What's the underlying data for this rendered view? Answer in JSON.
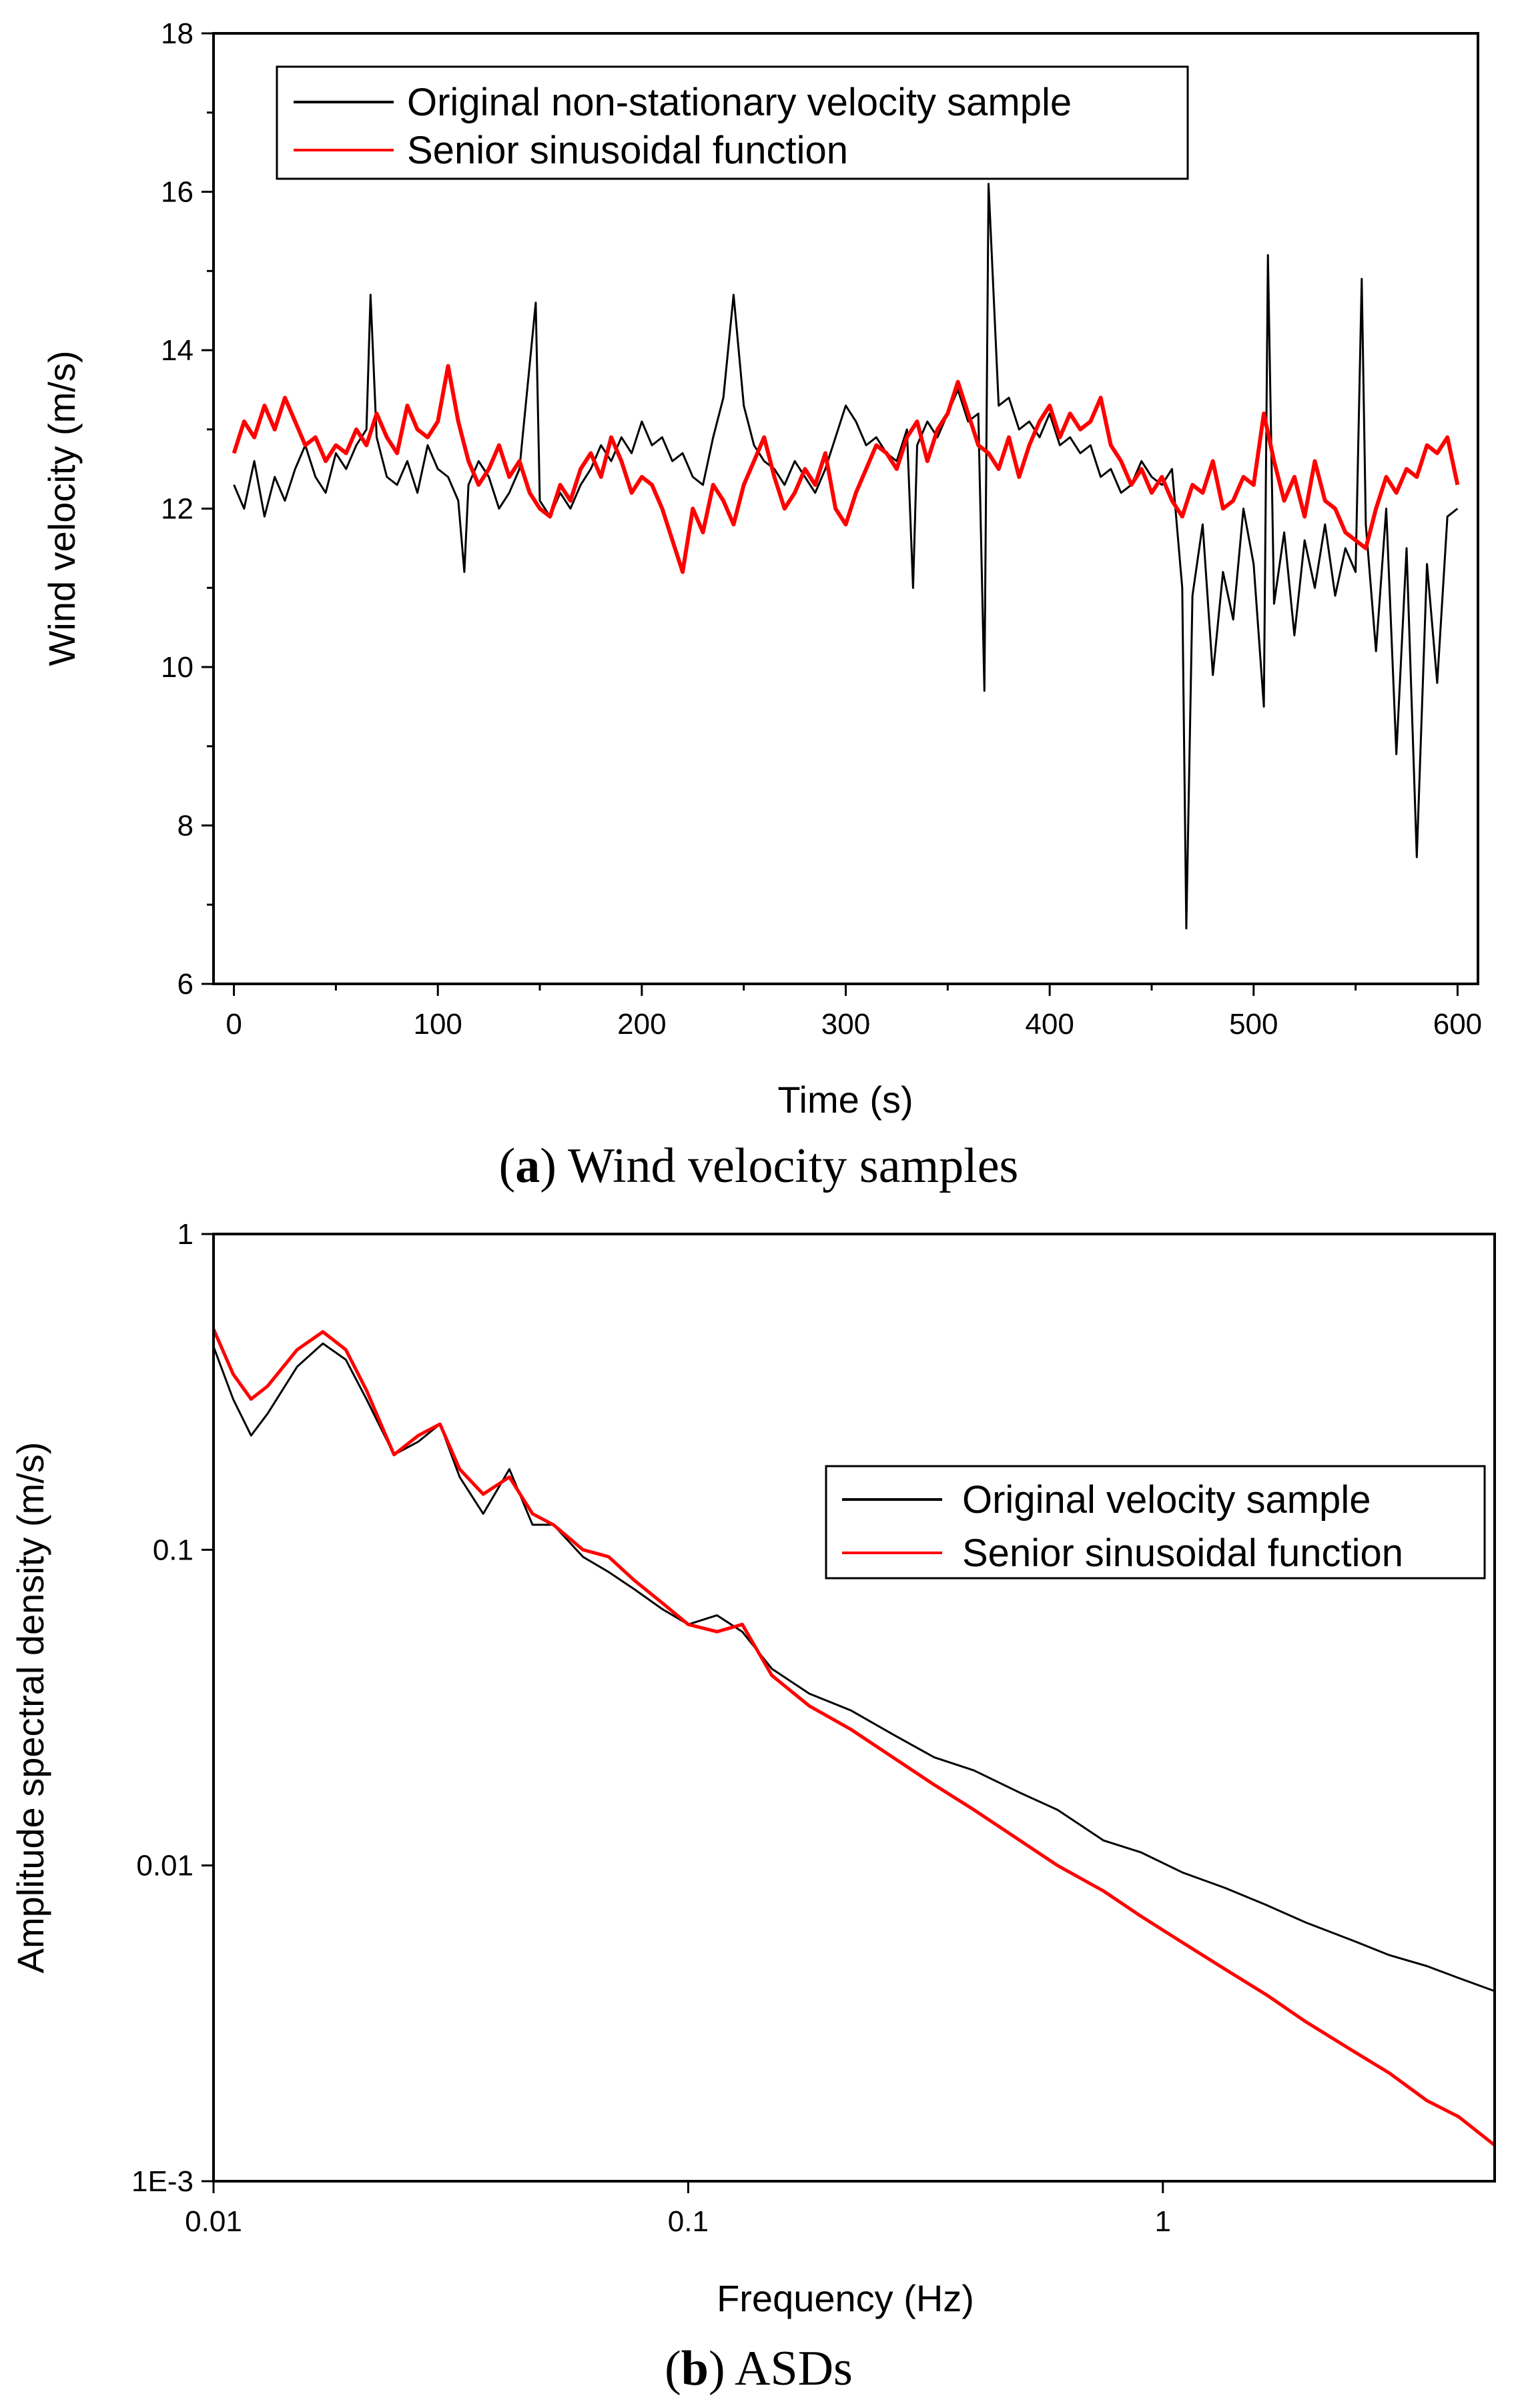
{
  "chart_data": [
    {
      "type": "line",
      "panel_label": "a",
      "caption_open": "(",
      "caption_close": ")",
      "caption_text": " Wind velocity samples",
      "xlabel": "Time (s)",
      "ylabel": "Wind velocity (m/s)",
      "xlim": [
        -10,
        610
      ],
      "ylim": [
        6,
        18
      ],
      "xticks": [
        0,
        100,
        200,
        300,
        400,
        500,
        600
      ],
      "yticks": [
        6,
        8,
        10,
        12,
        14,
        16,
        18
      ],
      "legend_position": "top-left",
      "series": [
        {
          "name": "Original non-stationary velocity sample",
          "color": "#000000",
          "x": [
            0,
            5,
            10,
            15,
            20,
            25,
            30,
            35,
            40,
            45,
            50,
            55,
            60,
            65,
            67,
            70,
            75,
            80,
            85,
            90,
            95,
            100,
            105,
            110,
            113,
            115,
            120,
            125,
            130,
            135,
            140,
            148,
            150,
            155,
            160,
            165,
            170,
            175,
            180,
            185,
            190,
            195,
            200,
            205,
            210,
            215,
            220,
            225,
            230,
            235,
            240,
            245,
            250,
            255,
            260,
            265,
            270,
            275,
            280,
            285,
            290,
            295,
            300,
            305,
            310,
            315,
            320,
            325,
            330,
            333,
            335,
            340,
            345,
            350,
            355,
            360,
            365,
            368,
            370,
            375,
            380,
            385,
            390,
            395,
            400,
            405,
            410,
            415,
            420,
            425,
            430,
            435,
            440,
            445,
            450,
            455,
            460,
            465,
            467,
            470,
            475,
            480,
            485,
            490,
            495,
            500,
            505,
            507,
            510,
            515,
            520,
            525,
            530,
            535,
            540,
            545,
            550,
            553,
            555,
            560,
            565,
            570,
            575,
            580,
            585,
            590,
            595,
            600
          ],
          "y": [
            12.3,
            12.0,
            12.6,
            11.9,
            12.4,
            12.1,
            12.5,
            12.8,
            12.4,
            12.2,
            12.7,
            12.5,
            12.8,
            13.0,
            14.7,
            12.9,
            12.4,
            12.3,
            12.6,
            12.2,
            12.8,
            12.5,
            12.4,
            12.1,
            11.2,
            12.3,
            12.6,
            12.4,
            12.0,
            12.2,
            12.5,
            14.6,
            12.1,
            11.9,
            12.2,
            12.0,
            12.3,
            12.5,
            12.8,
            12.6,
            12.9,
            12.7,
            13.1,
            12.8,
            12.9,
            12.6,
            12.7,
            12.4,
            12.3,
            12.9,
            13.4,
            14.7,
            13.3,
            12.8,
            12.6,
            12.5,
            12.3,
            12.6,
            12.4,
            12.2,
            12.5,
            12.9,
            13.3,
            13.1,
            12.8,
            12.9,
            12.7,
            12.6,
            13.0,
            11.0,
            12.8,
            13.1,
            12.9,
            13.2,
            13.5,
            13.1,
            13.2,
            9.7,
            16.1,
            13.3,
            13.4,
            13.0,
            13.1,
            12.9,
            13.2,
            12.8,
            12.9,
            12.7,
            12.8,
            12.4,
            12.5,
            12.2,
            12.3,
            12.6,
            12.4,
            12.3,
            12.5,
            11.0,
            6.7,
            10.9,
            11.8,
            9.9,
            11.2,
            10.6,
            12.0,
            11.3,
            9.5,
            15.2,
            10.8,
            11.7,
            10.4,
            11.6,
            11.0,
            11.8,
            10.9,
            11.5,
            11.2,
            14.9,
            11.8,
            10.2,
            12.0,
            8.9,
            11.5,
            7.6,
            11.3,
            9.8,
            11.9,
            12.0
          ]
        },
        {
          "name": "Senior sinusoidal function",
          "color": "#ff0000",
          "x": [
            0,
            5,
            10,
            15,
            20,
            25,
            30,
            35,
            40,
            45,
            50,
            55,
            60,
            65,
            70,
            75,
            80,
            85,
            90,
            95,
            100,
            105,
            110,
            115,
            120,
            125,
            130,
            135,
            140,
            145,
            150,
            155,
            160,
            165,
            170,
            175,
            180,
            185,
            190,
            195,
            200,
            205,
            210,
            215,
            220,
            225,
            230,
            235,
            240,
            245,
            250,
            255,
            260,
            265,
            270,
            275,
            280,
            285,
            290,
            295,
            300,
            305,
            310,
            315,
            320,
            325,
            330,
            335,
            340,
            345,
            350,
            355,
            360,
            365,
            370,
            375,
            380,
            385,
            390,
            395,
            400,
            405,
            410,
            415,
            420,
            425,
            430,
            435,
            440,
            445,
            450,
            455,
            460,
            465,
            470,
            475,
            480,
            485,
            490,
            495,
            500,
            505,
            510,
            515,
            520,
            525,
            530,
            535,
            540,
            545,
            550,
            555,
            560,
            565,
            570,
            575,
            580,
            585,
            590,
            595,
            600
          ],
          "y": [
            12.7,
            13.1,
            12.9,
            13.3,
            13.0,
            13.4,
            13.1,
            12.8,
            12.9,
            12.6,
            12.8,
            12.7,
            13.0,
            12.8,
            13.2,
            12.9,
            12.7,
            13.3,
            13.0,
            12.9,
            13.1,
            13.8,
            13.1,
            12.6,
            12.3,
            12.5,
            12.8,
            12.4,
            12.6,
            12.2,
            12.0,
            11.9,
            12.3,
            12.1,
            12.5,
            12.7,
            12.4,
            12.9,
            12.6,
            12.2,
            12.4,
            12.3,
            12.0,
            11.6,
            11.2,
            12.0,
            11.7,
            12.3,
            12.1,
            11.8,
            12.3,
            12.6,
            12.9,
            12.4,
            12.0,
            12.2,
            12.5,
            12.3,
            12.7,
            12.0,
            11.8,
            12.2,
            12.5,
            12.8,
            12.7,
            12.5,
            12.9,
            13.1,
            12.6,
            13.0,
            13.2,
            13.6,
            13.2,
            12.8,
            12.7,
            12.5,
            12.9,
            12.4,
            12.8,
            13.1,
            13.3,
            12.9,
            13.2,
            13.0,
            13.1,
            13.4,
            12.8,
            12.6,
            12.3,
            12.5,
            12.2,
            12.4,
            12.1,
            11.9,
            12.3,
            12.2,
            12.6,
            12.0,
            12.1,
            12.4,
            12.3,
            13.2,
            12.6,
            12.1,
            12.4,
            11.9,
            12.6,
            12.1,
            12.0,
            11.7,
            11.6,
            11.5,
            12.0,
            12.4,
            12.2,
            12.5,
            12.4,
            12.8,
            12.7,
            12.9,
            12.3
          ]
        }
      ]
    },
    {
      "type": "line",
      "panel_label": "b",
      "caption_open": "(",
      "caption_close": ")",
      "caption_text": " ASDs",
      "xlabel": "Frequency (Hz)",
      "ylabel": "Amplitude spectral density (m/s)",
      "x_scale": "log",
      "y_scale": "log",
      "xlim": [
        0.01,
        5
      ],
      "ylim": [
        0.001,
        1
      ],
      "xticks": [
        0.01,
        0.1,
        1
      ],
      "xtick_labels": [
        "0.01",
        "0.1",
        "1"
      ],
      "yticks": [
        0.001,
        0.01,
        0.1,
        1
      ],
      "ytick_labels": [
        "1E-3",
        "0.01",
        "0.1",
        "1"
      ],
      "legend_position": "top-right",
      "series": [
        {
          "name": "Original velocity sample",
          "color": "#000000",
          "x": [
            0.01,
            0.011,
            0.012,
            0.013,
            0.015,
            0.017,
            0.019,
            0.021,
            0.024,
            0.027,
            0.03,
            0.033,
            0.037,
            0.042,
            0.047,
            0.052,
            0.06,
            0.068,
            0.077,
            0.088,
            0.1,
            0.115,
            0.13,
            0.15,
            0.18,
            0.22,
            0.27,
            0.33,
            0.4,
            0.5,
            0.6,
            0.75,
            0.9,
            1.1,
            1.35,
            1.65,
            2.0,
            2.5,
            3.0,
            3.6,
            4.2,
            5.0
          ],
          "y": [
            0.44,
            0.3,
            0.23,
            0.27,
            0.38,
            0.45,
            0.4,
            0.3,
            0.2,
            0.22,
            0.25,
            0.17,
            0.13,
            0.18,
            0.12,
            0.12,
            0.095,
            0.085,
            0.075,
            0.065,
            0.058,
            0.062,
            0.055,
            0.042,
            0.035,
            0.031,
            0.026,
            0.022,
            0.02,
            0.017,
            0.015,
            0.012,
            0.011,
            0.0095,
            0.0085,
            0.0075,
            0.0066,
            0.0058,
            0.0052,
            0.0048,
            0.0044,
            0.004
          ]
        },
        {
          "name": "Senior sinusoidal function",
          "color": "#ff0000",
          "x": [
            0.01,
            0.011,
            0.012,
            0.013,
            0.015,
            0.017,
            0.019,
            0.021,
            0.024,
            0.027,
            0.03,
            0.033,
            0.037,
            0.042,
            0.047,
            0.052,
            0.06,
            0.068,
            0.077,
            0.088,
            0.1,
            0.115,
            0.13,
            0.15,
            0.18,
            0.22,
            0.27,
            0.33,
            0.4,
            0.5,
            0.6,
            0.75,
            0.9,
            1.1,
            1.35,
            1.65,
            2.0,
            2.5,
            3.0,
            3.6,
            4.2,
            5.0
          ],
          "y": [
            0.5,
            0.36,
            0.3,
            0.33,
            0.43,
            0.49,
            0.43,
            0.32,
            0.2,
            0.23,
            0.25,
            0.18,
            0.15,
            0.17,
            0.13,
            0.12,
            0.1,
            0.095,
            0.08,
            0.068,
            0.058,
            0.055,
            0.058,
            0.04,
            0.032,
            0.027,
            0.022,
            0.018,
            0.015,
            0.012,
            0.01,
            0.0083,
            0.0069,
            0.0057,
            0.0047,
            0.0039,
            0.0032,
            0.0026,
            0.0022,
            0.0018,
            0.0016,
            0.0013
          ]
        }
      ]
    }
  ]
}
